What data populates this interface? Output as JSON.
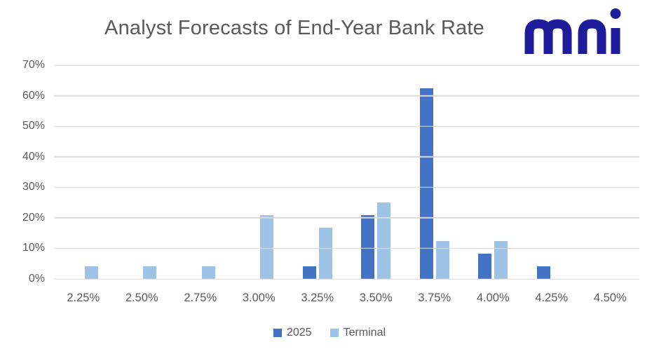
{
  "header": {
    "title": "Analyst Forecasts of End-Year Bank Rate",
    "logo_text": "mni"
  },
  "colors": {
    "series_2025": "#4472C4",
    "series_terminal": "#9DC3E6",
    "logo": "#1E1C99",
    "text": "#595959",
    "gridline": "#D9D9D9",
    "background": "#FFFFFF"
  },
  "chart_data": {
    "type": "bar",
    "title": "Analyst Forecasts of End-Year Bank Rate",
    "categories": [
      "2.25%",
      "2.50%",
      "2.75%",
      "3.00%",
      "3.25%",
      "3.50%",
      "3.75%",
      "4.00%",
      "4.25%",
      "4.50%"
    ],
    "series": [
      {
        "name": "2025",
        "color": "#4472C4",
        "values": [
          0,
          0,
          0,
          0,
          4.2,
          20.8,
          62.5,
          8.3,
          4.2,
          0
        ]
      },
      {
        "name": "Terminal",
        "color": "#9DC3E6",
        "values": [
          4.2,
          4.2,
          4.2,
          20.8,
          16.7,
          25.0,
          12.5,
          12.5,
          0,
          0
        ]
      }
    ],
    "xlabel": "",
    "ylabel": "",
    "ylim": [
      0,
      70
    ],
    "ytick_step": 10,
    "ytick_labels": [
      "0%",
      "10%",
      "20%",
      "30%",
      "40%",
      "50%",
      "60%",
      "70%"
    ],
    "grid": true,
    "legend_position": "bottom"
  },
  "legend": {
    "items": [
      {
        "label": "2025",
        "color": "#4472C4"
      },
      {
        "label": "Terminal",
        "color": "#9DC3E6"
      }
    ]
  }
}
